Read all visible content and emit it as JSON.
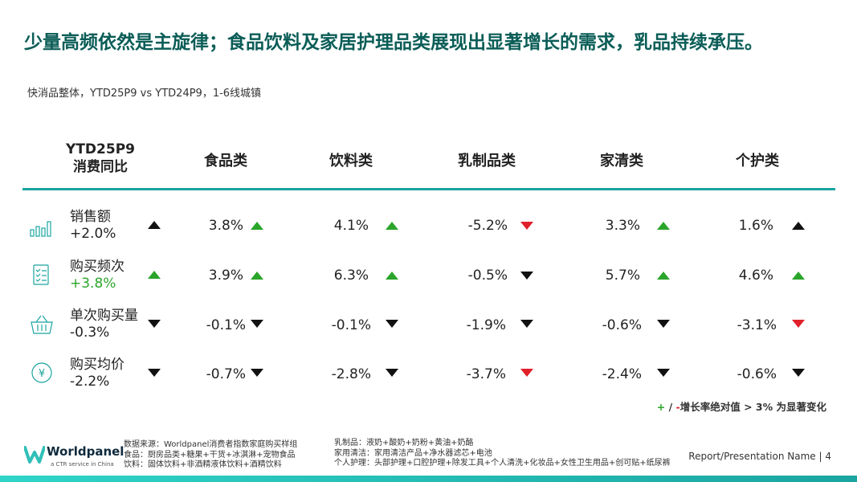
{
  "title": "少量高频依然是主旋律；食品饮料及家居护理品类展现出显著增长的需求，乳品持续承压。",
  "subtitle": "快消品整体，YTD25P9 vs YTD24P9，1-6线城镇",
  "header": {
    "metric_line1": "YTD25P9",
    "metric_line2": "消费同比",
    "columns": [
      "食品类",
      "饮料类",
      "乳制品类",
      "家清类",
      "个护类"
    ]
  },
  "rows": [
    {
      "label": "销售额",
      "change": "+2.0%",
      "change_color": "#222222",
      "change_arrow": "up-black",
      "icon": "bar-chart-icon",
      "values": [
        "3.8%",
        "4.1%",
        "-5.2%",
        "3.3%",
        "1.6%"
      ],
      "arrows": [
        "up-green",
        "up-green",
        "down-red",
        "up-green",
        "up-black"
      ]
    },
    {
      "label": "购买频次",
      "change": "+3.8%",
      "change_color": "#2aa52a",
      "change_arrow": "up-green",
      "icon": "checklist-icon",
      "values": [
        "3.9%",
        "6.3%",
        "-0.5%",
        "5.7%",
        "4.6%"
      ],
      "arrows": [
        "up-green",
        "up-green",
        "down-black",
        "up-green",
        "up-green"
      ]
    },
    {
      "label": "单次购买量",
      "change": "-0.3%",
      "change_color": "#222222",
      "change_arrow": "down-black",
      "icon": "basket-icon",
      "values": [
        "-0.1%",
        "-0.1%",
        "-1.9%",
        "-0.6%",
        "-3.1%"
      ],
      "arrows": [
        "down-black",
        "down-black",
        "down-black",
        "down-black",
        "down-red"
      ]
    },
    {
      "label": "购买均价",
      "change": "-2.2%",
      "change_color": "#222222",
      "change_arrow": "down-black",
      "icon": "yen-coin-icon",
      "values": [
        "-0.7%",
        "-2.8%",
        "-3.7%",
        "-2.4%",
        "-0.6%"
      ],
      "arrows": [
        "down-black",
        "down-black",
        "down-red",
        "down-black",
        "down-black"
      ]
    }
  ],
  "legend": {
    "plus": "+",
    "slash": " / ",
    "minus": "-",
    "text": "增长率绝对值 > 3% 为显著变化"
  },
  "logo": {
    "name": "Worldpanel",
    "tagline": "a CTR service in China"
  },
  "footnote_left": [
    "数据来源：Worldpanel消费者指数家庭购买样组",
    "食品：厨房品类+糖果+干货+冰淇淋+宠物食品",
    "饮料：固体饮料+非酒精液体饮料+酒精饮料"
  ],
  "footnote_right": [
    "乳制品：液奶+酸奶+奶粉+黄油+奶酪",
    "家用清洁：家用清洁产品+净水器滤芯+电池",
    "个人护理：头部护理+口腔护理+除发工具+个人清洗+化妆品+女性卫生用品+创可贴+纸尿裤"
  ],
  "page_ref": "Report/Presentation Name | 4",
  "colors": {
    "teal": "#1aa5a0",
    "title": "#0b5d57",
    "green": "#2aa52a",
    "red": "#e0202a",
    "black": "#111111"
  }
}
